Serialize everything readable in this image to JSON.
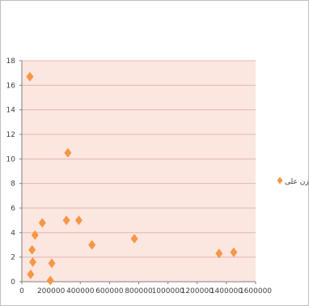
{
  "chart_data": {
    "type": "scatter",
    "title": "",
    "xlabel": "",
    "ylabel": "",
    "xlim": [
      0,
      1600000
    ],
    "ylim": [
      0,
      18
    ],
    "x_ticks": [
      "0",
      "200000",
      "400000",
      "600000",
      "800000",
      "1000000",
      "1200000",
      "1400000",
      "1600000"
    ],
    "y_ticks": [
      "0",
      "2",
      "4",
      "6",
      "8",
      "10",
      "12",
      "14",
      "16",
      "18"
    ],
    "grid": "horizontal",
    "legend_position": "right",
    "marker": "diamond",
    "colors": {
      "plot_background": "#fbe6e0",
      "marker": "#f79646",
      "gridline": "#e2b8ad"
    },
    "series": [
      {
        "name": "وزن علی",
        "points": [
          [
            55000,
            16.7
          ],
          [
            60000,
            0.6
          ],
          [
            70000,
            2.6
          ],
          [
            75000,
            1.6
          ],
          [
            90000,
            3.8
          ],
          [
            140000,
            4.8
          ],
          [
            195000,
            0.1
          ],
          [
            205000,
            1.5
          ],
          [
            305000,
            5.0
          ],
          [
            315000,
            10.5
          ],
          [
            390000,
            5.0
          ],
          [
            480000,
            3.0
          ],
          [
            770000,
            3.5
          ],
          [
            1350000,
            2.3
          ],
          [
            1450000,
            2.4
          ]
        ]
      }
    ]
  }
}
